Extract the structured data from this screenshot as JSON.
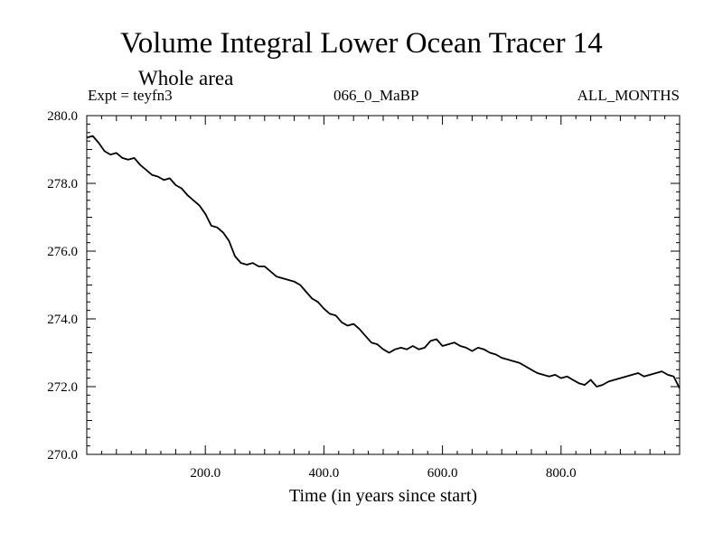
{
  "chart_data": {
    "type": "line",
    "title": "Volume Integral Lower Ocean Tracer 14",
    "subtitle": "Whole area",
    "expt_label": "Expt = teyfn3",
    "period_label": "066_0_MaBP",
    "months_label": "ALL_MONTHS",
    "xlabel": "Time (in years since start)",
    "ylabel": "",
    "xlim": [
      0,
      1000
    ],
    "ylim": [
      270,
      280
    ],
    "x_tick_labels": [
      "200.0",
      "400.0",
      "600.0",
      "800.0"
    ],
    "y_tick_labels": [
      "270.0",
      "272.0",
      "274.0",
      "276.0",
      "278.0",
      "280.0"
    ],
    "grid": false,
    "line_color": "#000000",
    "series": [
      {
        "name": "Tracer 14",
        "x": [
          0,
          10,
          20,
          30,
          40,
          50,
          60,
          70,
          80,
          90,
          100,
          110,
          120,
          130,
          140,
          150,
          160,
          170,
          180,
          190,
          200,
          210,
          220,
          230,
          240,
          250,
          260,
          270,
          280,
          290,
          300,
          310,
          320,
          330,
          340,
          350,
          360,
          370,
          380,
          390,
          400,
          410,
          420,
          430,
          440,
          450,
          460,
          470,
          480,
          490,
          500,
          510,
          520,
          530,
          540,
          550,
          560,
          570,
          580,
          590,
          600,
          610,
          620,
          630,
          640,
          650,
          660,
          670,
          680,
          690,
          700,
          710,
          720,
          730,
          740,
          750,
          760,
          770,
          780,
          790,
          800,
          810,
          820,
          830,
          840,
          850,
          860,
          870,
          880,
          890,
          900,
          910,
          920,
          930,
          940,
          950,
          960,
          970,
          980,
          990,
          1000
        ],
        "values": [
          279.35,
          279.4,
          279.2,
          278.95,
          278.85,
          278.9,
          278.75,
          278.7,
          278.75,
          278.55,
          278.4,
          278.25,
          278.2,
          278.1,
          278.15,
          277.95,
          277.85,
          277.65,
          277.5,
          277.35,
          277.1,
          276.75,
          276.7,
          276.55,
          276.3,
          275.85,
          275.65,
          275.6,
          275.65,
          275.55,
          275.55,
          275.4,
          275.25,
          275.2,
          275.15,
          275.1,
          275.0,
          274.8,
          274.6,
          274.5,
          274.3,
          274.15,
          274.1,
          273.9,
          273.8,
          273.85,
          273.7,
          273.5,
          273.3,
          273.25,
          273.1,
          273.0,
          273.1,
          273.15,
          273.1,
          273.2,
          273.1,
          273.15,
          273.35,
          273.4,
          273.2,
          273.25,
          273.3,
          273.2,
          273.15,
          273.05,
          273.15,
          273.1,
          273.0,
          272.95,
          272.85,
          272.8,
          272.75,
          272.7,
          272.6,
          272.5,
          272.4,
          272.35,
          272.3,
          272.35,
          272.25,
          272.3,
          272.2,
          272.1,
          272.05,
          272.2,
          272.0,
          272.05,
          272.15,
          272.2,
          272.25,
          272.3,
          272.35,
          272.4,
          272.3,
          272.35,
          272.4,
          272.45,
          272.35,
          272.3,
          271.95
        ]
      }
    ]
  }
}
